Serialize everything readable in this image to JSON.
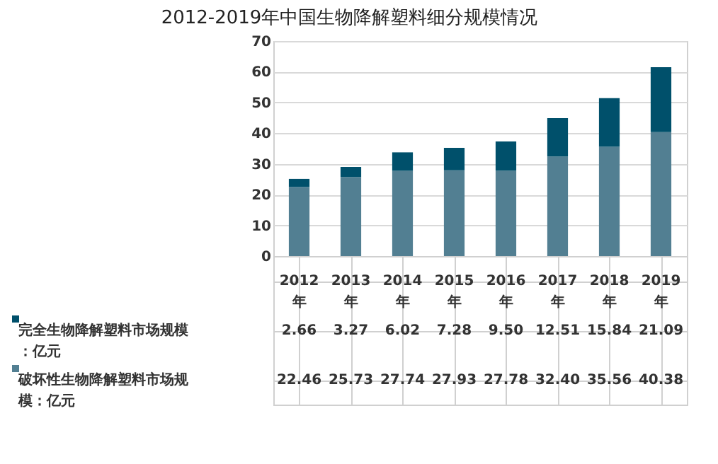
{
  "chart_data": {
    "type": "bar",
    "title": "2012-2019年中国生物降解塑料细分规模情况",
    "categories": [
      "2012年",
      "2013年",
      "2014年",
      "2015年",
      "2016年",
      "2017年",
      "2018年",
      "2019年"
    ],
    "stacked": true,
    "series": [
      {
        "name": "破坏性生物降解塑料市场规模：亿元",
        "color": "#527f92",
        "values": [
          22.46,
          25.73,
          27.74,
          27.93,
          27.78,
          32.4,
          35.56,
          40.38
        ],
        "value_labels": [
          "22.46",
          "25.73",
          "27.74",
          "27.93",
          "27.78",
          "32.40",
          "35.56",
          "40.38"
        ]
      },
      {
        "name": "完全生物降解塑料市场规模：亿元",
        "color": "#00506b",
        "values": [
          2.66,
          3.27,
          6.02,
          7.28,
          9.5,
          12.51,
          15.84,
          21.09
        ],
        "value_labels": [
          "2.66",
          "3.27",
          "6.02",
          "7.28",
          "9.50",
          "12.51",
          "15.84",
          "21.09"
        ]
      }
    ],
    "ylim": [
      0,
      70
    ],
    "yticks": [
      0,
      10,
      20,
      30,
      40,
      50,
      60,
      70
    ],
    "grid": "y",
    "legend": "bottom"
  }
}
